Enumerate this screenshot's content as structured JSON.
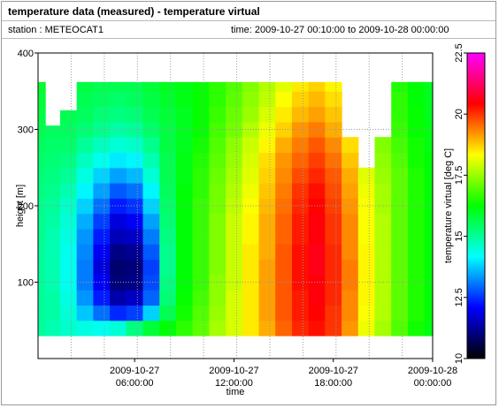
{
  "window": {
    "title": "temperature data (measured) - temperature virtual"
  },
  "info": {
    "station": "station : METEOCAT1",
    "time": "time: 2009-10-27 00:10:00 to 2009-10-28 00:00:00"
  },
  "chart_data": {
    "type": "heatmap",
    "title": "temperature data (measured) - temperature virtual",
    "xlabel": "time",
    "ylabel": "height [m]",
    "colorbar_label": "temperature virtual [deg C]",
    "xlim": [
      "2009-10-27 00:10:00",
      "2009-10-28 00:00:00"
    ],
    "ylim": [
      0,
      400
    ],
    "x_ticks": [
      {
        "value": "2009-10-27 06:00:00",
        "line1": "2009-10-27",
        "line2": "06:00:00"
      },
      {
        "value": "2009-10-27 12:00:00",
        "line1": "2009-10-27",
        "line2": "12:00:00"
      },
      {
        "value": "2009-10-27 18:00:00",
        "line1": "2009-10-27",
        "line2": "18:00:00"
      },
      {
        "value": "2009-10-28 00:00:00",
        "line1": "2009-10-28",
        "line2": "00:00:00"
      }
    ],
    "y_ticks": [
      100,
      200,
      300,
      400
    ],
    "colorbar_range": [
      10,
      22.5
    ],
    "colorbar_ticks": [
      10,
      12.5,
      15,
      17.5,
      20,
      22.5
    ],
    "colormap": [
      "#000000",
      "#0000ff",
      "#00ffff",
      "#00ff00",
      "#ffff00",
      "#ff0000",
      "#ff00ff"
    ],
    "grid": true,
    "height_levels_m": [
      40,
      60,
      80,
      100,
      120,
      140,
      160,
      180,
      200,
      220,
      240,
      260,
      280,
      300,
      320,
      340,
      360
    ],
    "time_hours": [
      0.2,
      1,
      2,
      3,
      4,
      5,
      6,
      7,
      8,
      9,
      10,
      11,
      12,
      13,
      14,
      15,
      16,
      17,
      18,
      19,
      20,
      21,
      22,
      23,
      24
    ],
    "data_top_m": [
      362,
      305,
      325,
      362,
      362,
      362,
      362,
      362,
      362,
      362,
      362,
      362,
      362,
      362,
      362,
      362,
      362,
      362,
      362,
      290,
      250,
      295,
      362,
      362,
      362
    ],
    "temperatures": [
      [
        15.0,
        14.8,
        14.6,
        14.4,
        14.3,
        14.5,
        15.2,
        15.8,
        16.2,
        16.6,
        17.0,
        17.6,
        18.0,
        18.5,
        19.0,
        19.6,
        20.1,
        20.3,
        20.0,
        19.2,
        18.2,
        17.6,
        16.9,
        16.4,
        16.1
      ],
      [
        15.0,
        14.9,
        14.5,
        13.7,
        13.0,
        12.4,
        12.6,
        13.8,
        15.6,
        16.4,
        16.9,
        17.5,
        18.0,
        18.5,
        19.1,
        19.7,
        20.2,
        20.4,
        20.0,
        19.3,
        18.3,
        17.7,
        17.0,
        16.5,
        16.2
      ],
      [
        15.0,
        14.9,
        14.4,
        13.3,
        12.3,
        11.4,
        11.6,
        12.9,
        15.3,
        16.3,
        16.8,
        17.4,
        18.0,
        18.5,
        19.1,
        19.7,
        20.2,
        20.5,
        20.1,
        19.3,
        18.4,
        17.7,
        17.0,
        16.5,
        16.2
      ],
      [
        15.0,
        14.8,
        14.3,
        13.1,
        12.0,
        11.0,
        11.1,
        12.7,
        15.2,
        16.2,
        16.7,
        17.4,
        17.9,
        18.5,
        19.1,
        19.7,
        20.3,
        20.5,
        20.1,
        19.4,
        18.4,
        17.7,
        17.0,
        16.5,
        16.2
      ],
      [
        15.0,
        14.8,
        14.3,
        13.1,
        11.8,
        10.9,
        11.0,
        12.6,
        15.1,
        16.2,
        16.7,
        17.3,
        17.9,
        18.5,
        19.1,
        19.7,
        20.3,
        20.6,
        20.1,
        19.4,
        18.4,
        17.7,
        17.0,
        16.5,
        16.2
      ],
      [
        15.0,
        14.8,
        14.3,
        13.2,
        12.0,
        11.1,
        11.2,
        12.8,
        15.1,
        16.2,
        16.7,
        17.3,
        17.9,
        18.5,
        19.0,
        19.7,
        20.3,
        20.6,
        20.1,
        19.3,
        18.4,
        17.7,
        17.0,
        16.5,
        16.2
      ],
      [
        15.1,
        14.8,
        14.4,
        13.3,
        12.3,
        11.5,
        11.6,
        13.1,
        15.2,
        16.2,
        16.7,
        17.3,
        17.9,
        18.4,
        19.0,
        19.6,
        20.2,
        20.5,
        20.0,
        19.3,
        18.3,
        17.7,
        17.0,
        16.5,
        16.2
      ],
      [
        15.1,
        14.9,
        14.5,
        13.5,
        12.6,
        11.8,
        12.0,
        13.4,
        15.3,
        16.2,
        16.7,
        17.3,
        17.9,
        18.4,
        19.0,
        19.6,
        20.2,
        20.5,
        20.0,
        19.3,
        18.3,
        17.7,
        17.0,
        16.5,
        16.2
      ],
      [
        15.1,
        15.0,
        14.6,
        13.8,
        13.0,
        12.3,
        12.5,
        13.8,
        15.4,
        16.2,
        16.7,
        17.2,
        17.8,
        18.3,
        18.9,
        19.5,
        20.1,
        20.4,
        19.9,
        19.2,
        18.3,
        17.6,
        17.0,
        16.5,
        16.2
      ],
      [
        15.2,
        15.1,
        14.8,
        14.1,
        13.4,
        12.8,
        13.0,
        14.1,
        15.5,
        16.2,
        16.6,
        17.2,
        17.7,
        18.2,
        18.8,
        19.4,
        20.0,
        20.3,
        19.8,
        19.1,
        18.2,
        17.6,
        17.0,
        16.5,
        16.2
      ],
      [
        15.3,
        15.2,
        15.0,
        14.4,
        13.8,
        13.4,
        13.6,
        14.5,
        15.6,
        16.1,
        16.6,
        17.1,
        17.6,
        18.1,
        18.7,
        19.3,
        19.8,
        20.1,
        19.7,
        19.0,
        18.1,
        17.5,
        17.0,
        16.5,
        16.2
      ],
      [
        15.4,
        15.3,
        15.2,
        14.7,
        14.3,
        14.0,
        14.1,
        14.8,
        15.6,
        16.1,
        16.5,
        17.0,
        17.5,
        18.0,
        18.6,
        19.2,
        19.6,
        19.9,
        19.5,
        18.8,
        18.0,
        17.4,
        16.9,
        16.4,
        16.2
      ],
      [
        15.5,
        15.4,
        15.4,
        15.0,
        14.7,
        14.5,
        14.6,
        15.1,
        15.7,
        16.0,
        16.4,
        16.9,
        17.4,
        17.9,
        18.4,
        19.0,
        19.4,
        19.7,
        19.3,
        18.6,
        17.9,
        17.3,
        16.8,
        16.4,
        16.1
      ],
      [
        15.6,
        15.5,
        15.5,
        15.3,
        15.1,
        14.9,
        15.0,
        15.4,
        15.7,
        16.0,
        16.3,
        16.8,
        17.2,
        17.7,
        18.2,
        18.7,
        19.2,
        19.4,
        19.0,
        18.4,
        17.7,
        17.2,
        16.7,
        16.3,
        16.1
      ],
      [
        15.7,
        15.6,
        15.6,
        15.5,
        15.3,
        15.2,
        15.3,
        15.6,
        15.8,
        16.0,
        16.3,
        16.7,
        17.1,
        17.5,
        18.0,
        18.5,
        18.9,
        19.1,
        18.8,
        18.2,
        17.6,
        17.1,
        16.6,
        16.3,
        16.0
      ],
      [
        15.8,
        15.7,
        15.7,
        15.6,
        15.5,
        15.4,
        15.5,
        15.7,
        15.9,
        16.1,
        16.3,
        16.6,
        17.0,
        17.4,
        17.8,
        18.3,
        18.7,
        18.9,
        18.6,
        18.1,
        17.5,
        17.0,
        16.6,
        16.2,
        16.0
      ],
      [
        15.9,
        15.8,
        15.8,
        15.7,
        15.6,
        15.6,
        15.6,
        15.8,
        16.0,
        16.1,
        16.3,
        16.6,
        16.9,
        17.3,
        17.7,
        18.1,
        18.5,
        18.7,
        18.4,
        17.9,
        17.4,
        16.9,
        16.5,
        16.2,
        16.0
      ]
    ]
  }
}
